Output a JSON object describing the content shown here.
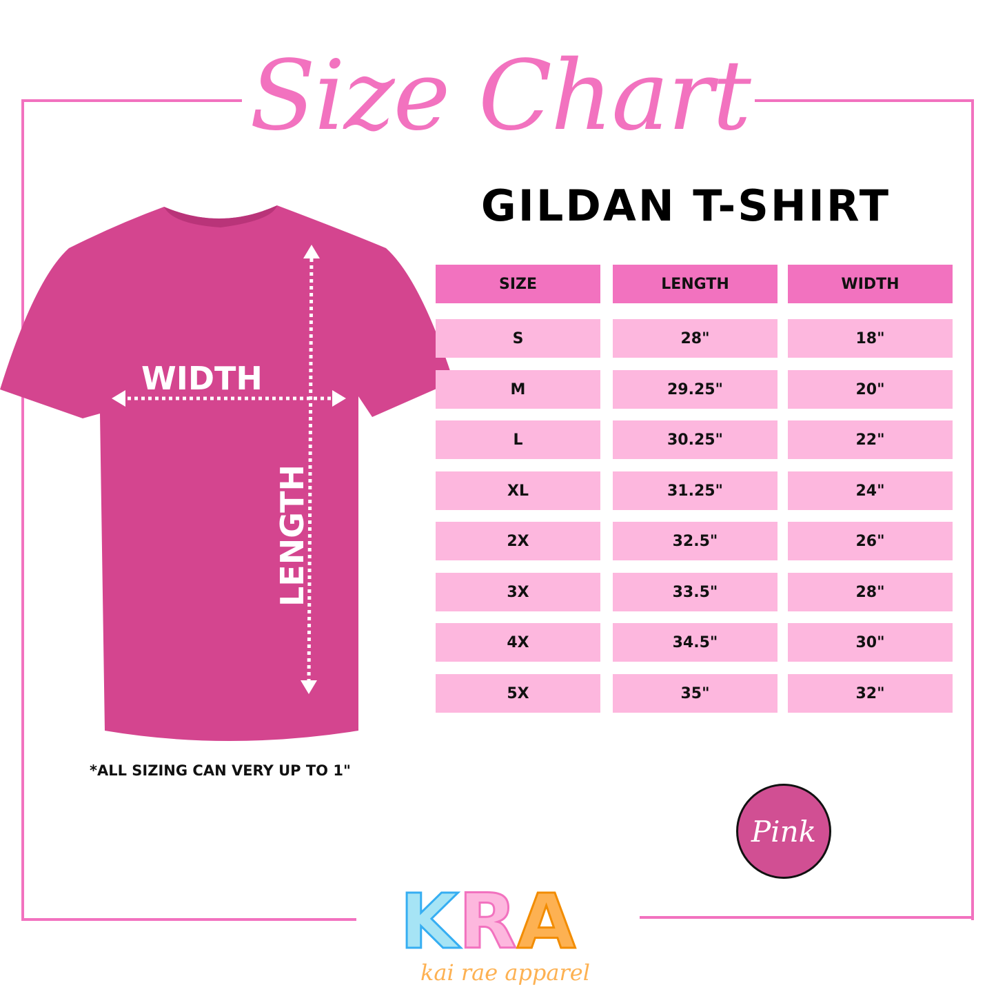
{
  "title": "Size Chart",
  "subtitle": "GILDAN T-SHIRT",
  "shirt": {
    "color": "#d4458f",
    "width_label": "WIDTH",
    "length_label": "LENGTH"
  },
  "table": {
    "headers": [
      "SIZE",
      "LENGTH",
      "WIDTH"
    ],
    "rows": [
      [
        "S",
        "28\"",
        "18\""
      ],
      [
        "M",
        "29.25\"",
        "20\""
      ],
      [
        "L",
        "30.25\"",
        "22\""
      ],
      [
        "XL",
        "31.25\"",
        "24\""
      ],
      [
        "2X",
        "32.5\"",
        "26\""
      ],
      [
        "3X",
        "33.5\"",
        "28\""
      ],
      [
        "4X",
        "34.5\"",
        "30\""
      ],
      [
        "5X",
        "35\"",
        "32\""
      ]
    ]
  },
  "note": "*ALL SIZING CAN VERY UP TO 1\"",
  "color_swatch": {
    "label": "Pink",
    "color": "#d14f93"
  },
  "logo": {
    "letters": "KRA",
    "tagline": "kai rae apparel"
  },
  "colors": {
    "accent": "#f272bf",
    "row_fill": "#fdb7de",
    "k": "#a6e4f5",
    "r": "#fdb7de",
    "a": "#fdb152"
  }
}
